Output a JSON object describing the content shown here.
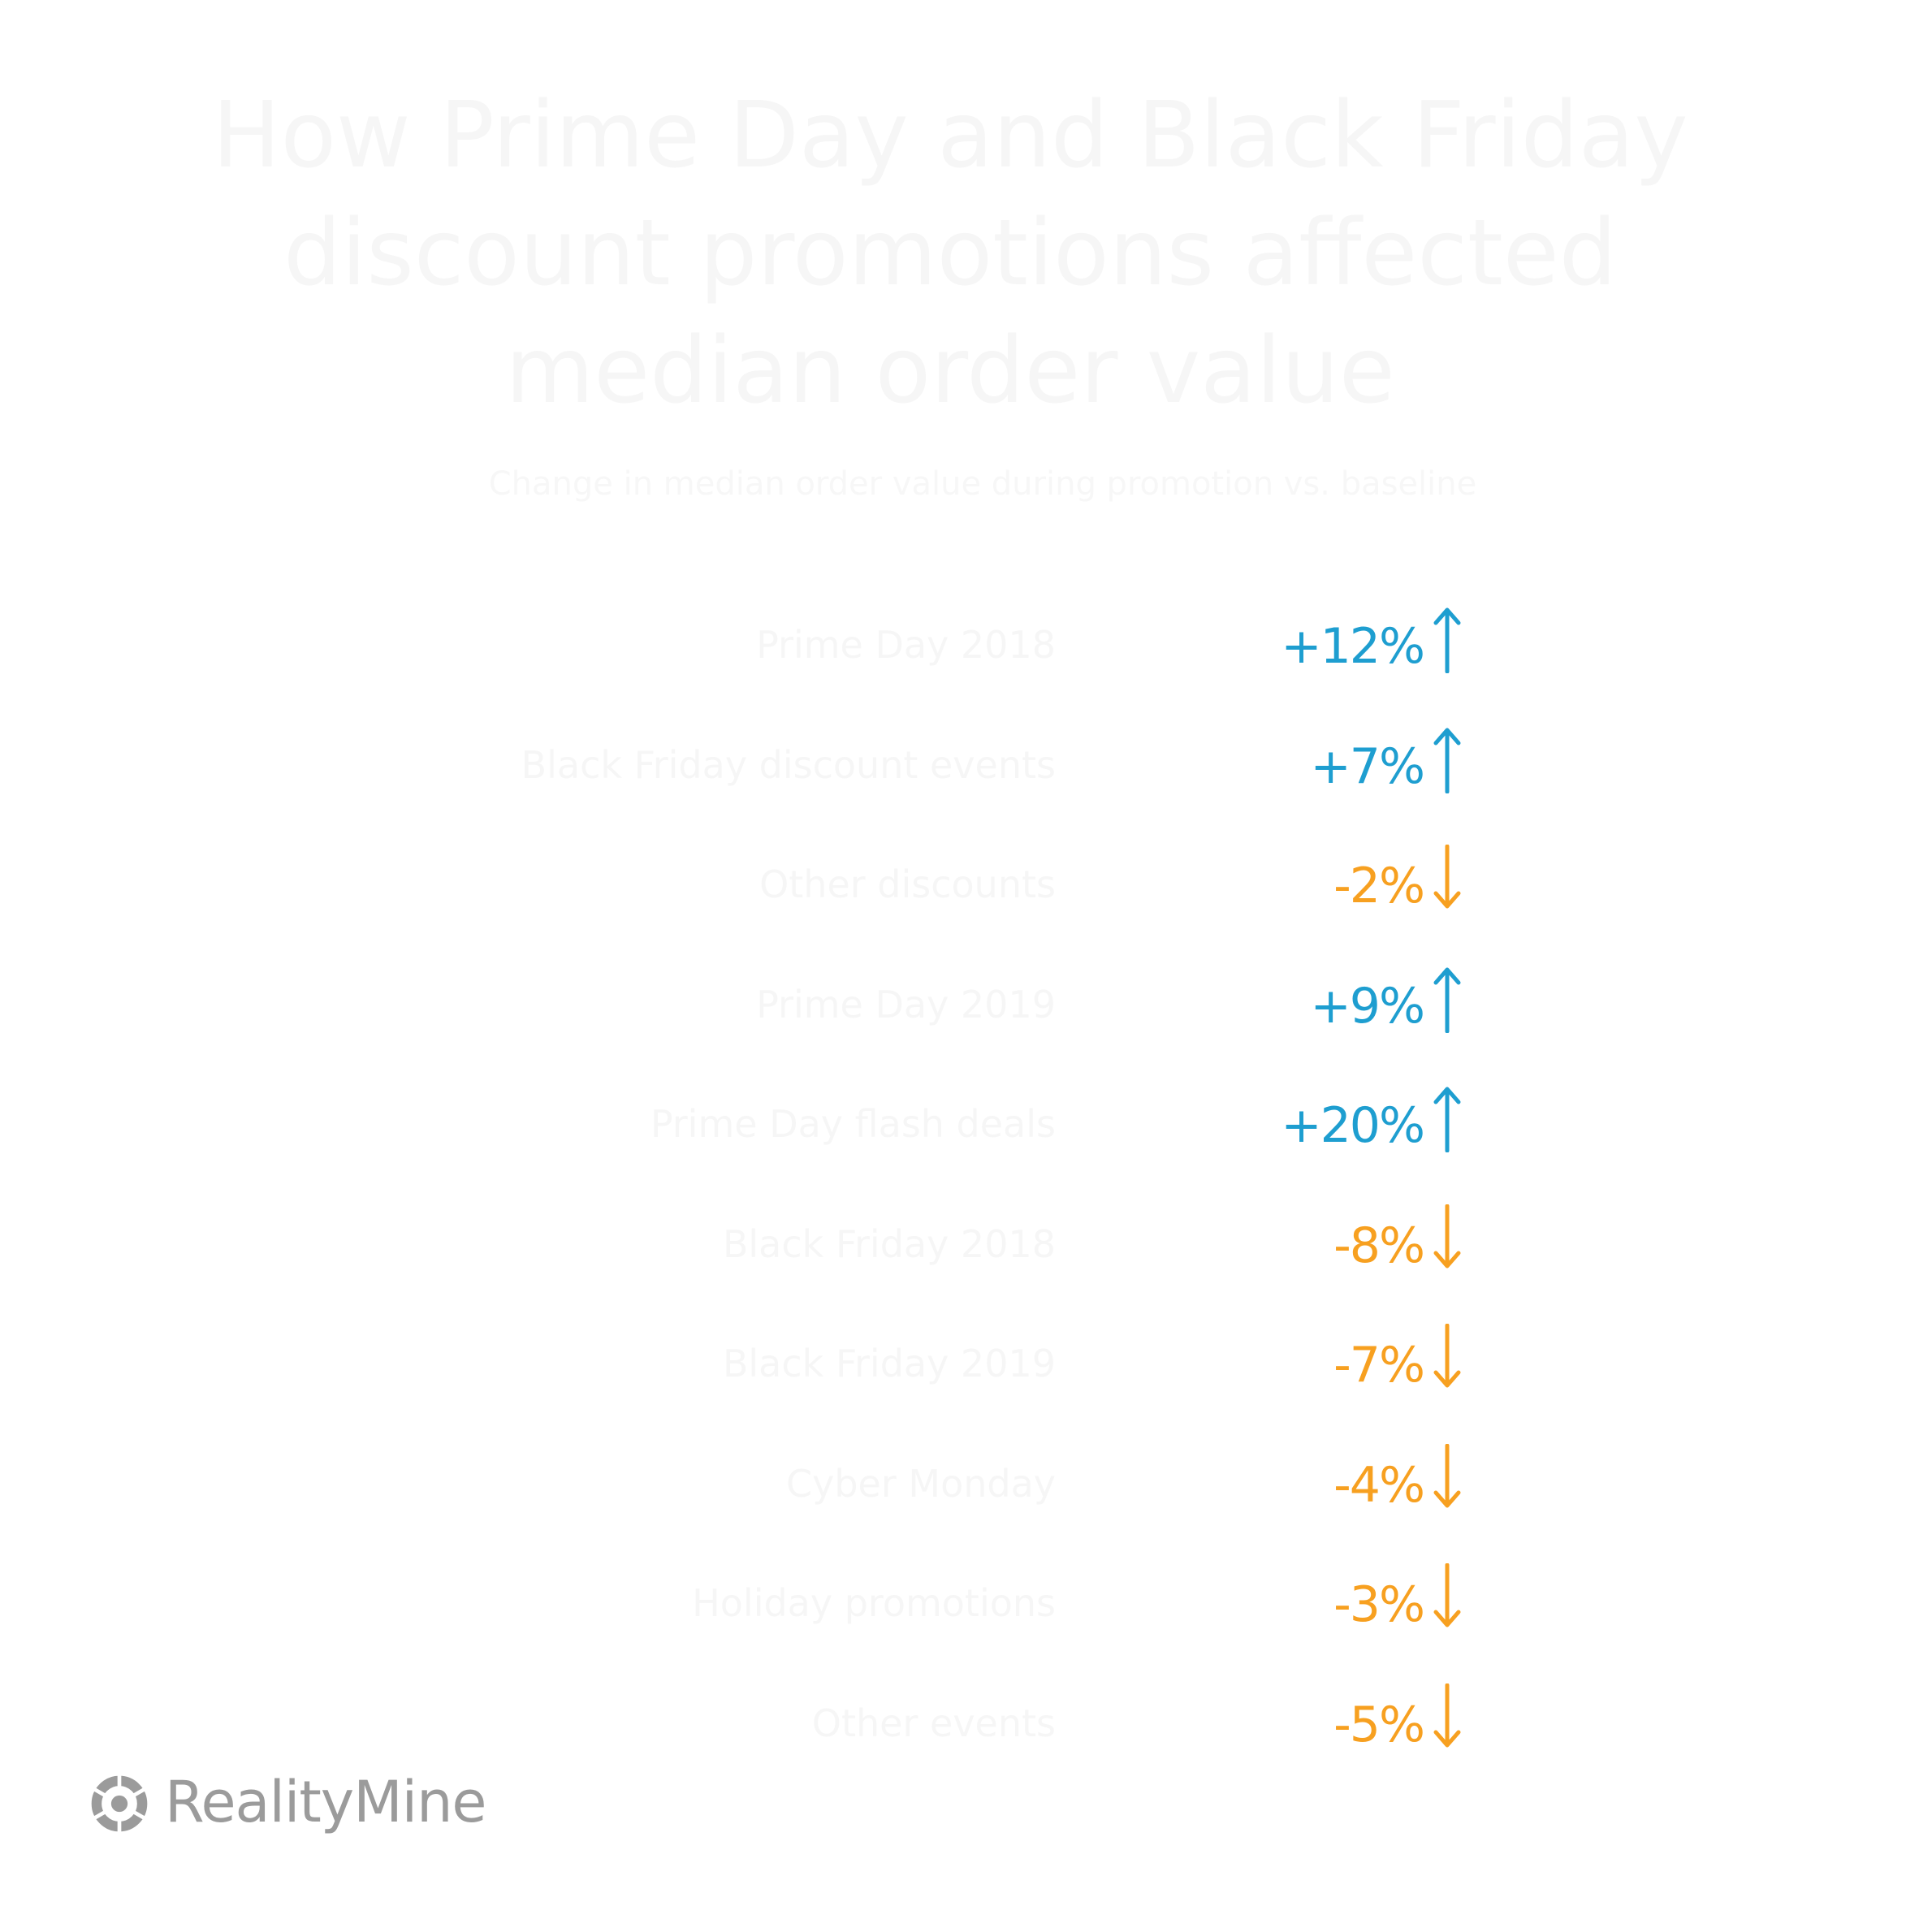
{
  "title": "How Prime Day and Black Friday discount promotions affected median order value",
  "subtitle": "Change in median order value during promotion vs. baseline",
  "colors": {
    "up": "#1e9ed0",
    "down": "#f7a020",
    "logo": "#9b9b9b"
  },
  "rows": [
    {
      "label": "Prime Day 2018",
      "value": "+12%",
      "direction": "up"
    },
    {
      "label": "Black Friday discount events",
      "value": "+7%",
      "direction": "up"
    },
    {
      "label": "Other discounts",
      "value": "-2%",
      "direction": "down"
    },
    {
      "label": "Prime Day 2019",
      "value": "+9%",
      "direction": "up"
    },
    {
      "label": "Prime Day flash deals",
      "value": "+20%",
      "direction": "up"
    },
    {
      "label": "Black Friday 2018",
      "value": "-8%",
      "direction": "down"
    },
    {
      "label": "Black Friday 2019",
      "value": "-7%",
      "direction": "down"
    },
    {
      "label": "Cyber Monday",
      "value": "-4%",
      "direction": "down"
    },
    {
      "label": "Holiday promotions",
      "value": "-3%",
      "direction": "down"
    },
    {
      "label": "Other events",
      "value": "-5%",
      "direction": "down"
    }
  ],
  "logo": {
    "text": "RealityMine",
    "icon": "realitymine-logo-icon"
  }
}
